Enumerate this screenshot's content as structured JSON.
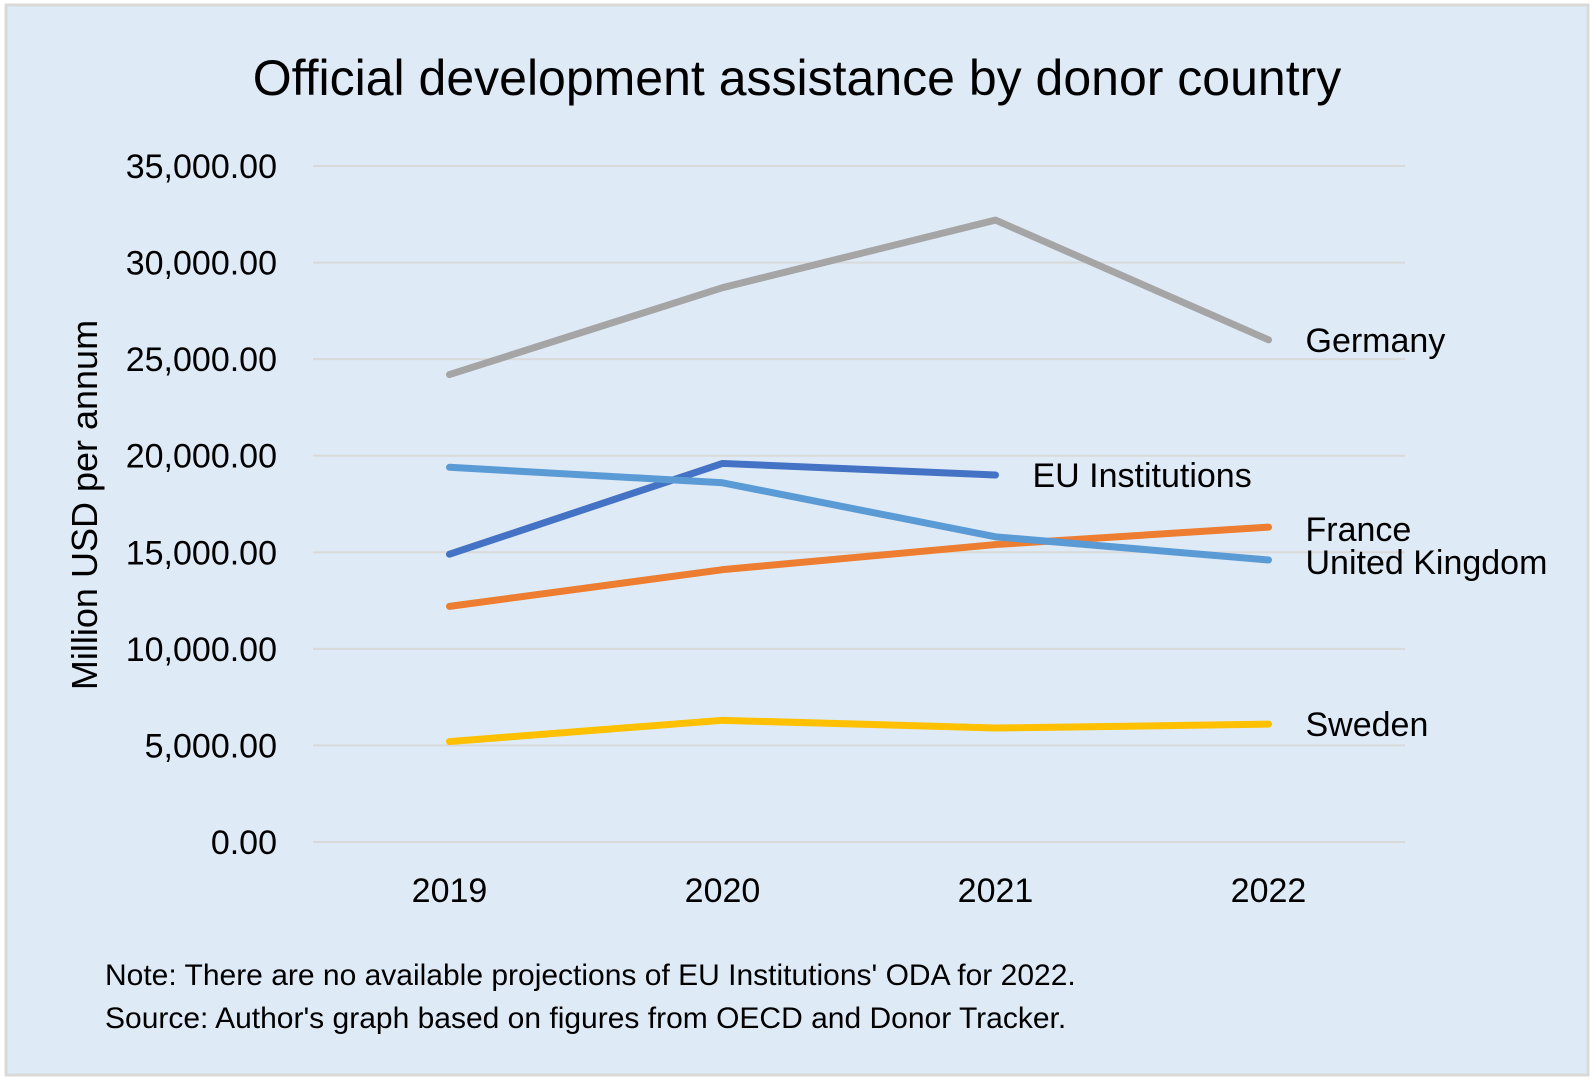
{
  "chart_data": {
    "type": "line",
    "title": "Official development assistance by donor country",
    "xlabel": "",
    "ylabel": "Million USD per annum",
    "categories": [
      "2019",
      "2020",
      "2021",
      "2022"
    ],
    "ylim": [
      0,
      35000
    ],
    "yticks": [
      "0.00",
      "5,000.00",
      "10,000.00",
      "15,000.00",
      "20,000.00",
      "25,000.00",
      "30,000.00",
      "35,000.00"
    ],
    "grid": true,
    "legend": "direct labels at line ends",
    "series": [
      {
        "name": "Germany",
        "color": "#A5A5A5",
        "values": [
          24200,
          28700,
          32200,
          26000
        ]
      },
      {
        "name": "EU Institutions",
        "color": "#4472C4",
        "values": [
          14900,
          19600,
          19000,
          null
        ]
      },
      {
        "name": "France",
        "color": "#ED7D31",
        "values": [
          12200,
          14100,
          15400,
          16300
        ]
      },
      {
        "name": "United Kingdom",
        "color": "#5B9BD5",
        "values": [
          19400,
          18600,
          15800,
          14600
        ]
      },
      {
        "name": "Sweden",
        "color": "#FFC000",
        "values": [
          5200,
          6300,
          5900,
          6100
        ]
      }
    ],
    "notes": [
      "Note: There are no available projections of EU Institutions' ODA for 2022.",
      "Source: Author's graph based on figures from OECD and Donor Tracker."
    ],
    "colors": {
      "background": "#DEEAF6",
      "border": "#D9D9D9",
      "grid": "#D9D9D9"
    }
  }
}
